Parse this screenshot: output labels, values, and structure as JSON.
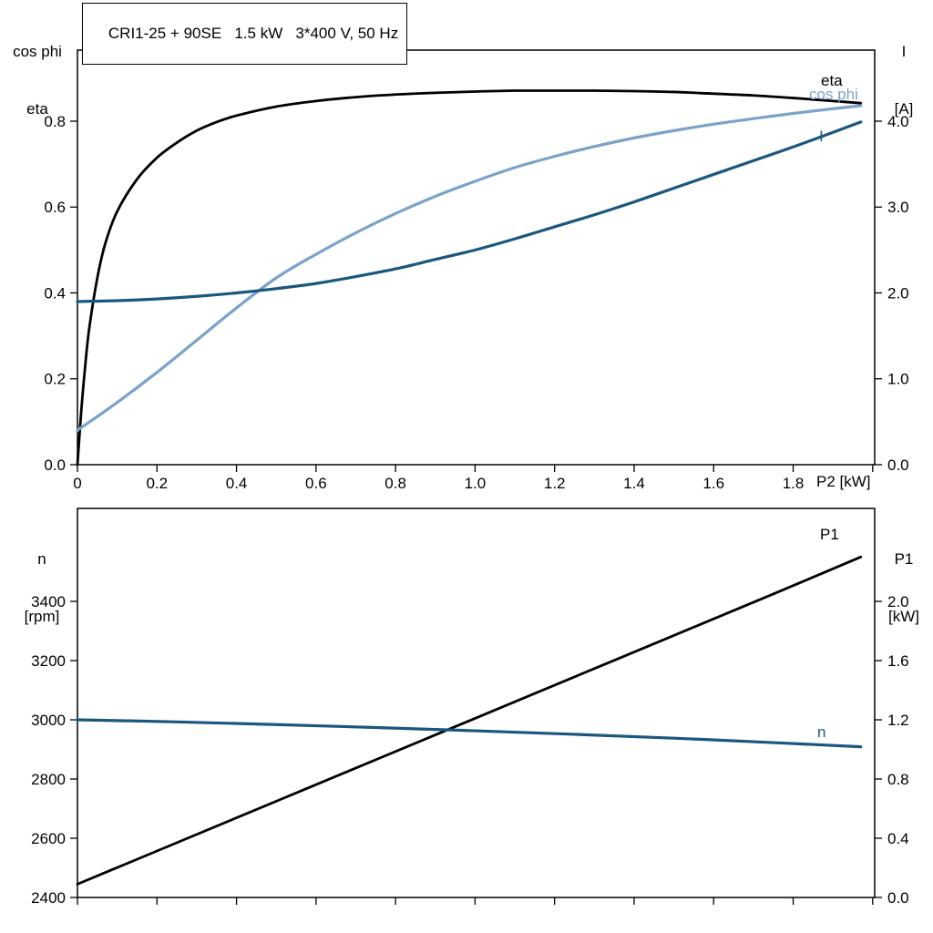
{
  "colors": {
    "black": "#000000",
    "dark_blue": "#1a577f",
    "light_blue": "#7ba3c9",
    "axis": "#000000",
    "background": "#ffffff"
  },
  "chart_data": [
    {
      "type": "line",
      "title": "CRI1-25 + 90SE   1.5 kW   3*400 V, 50 Hz",
      "x_axis": {
        "label": "P2 [kW]",
        "range": [
          0,
          2.005
        ],
        "ticks": [
          0,
          0.2,
          0.4,
          0.6,
          0.8,
          1.0,
          1.2,
          1.4,
          1.6,
          1.8,
          2.0
        ],
        "tick_labels": [
          "0",
          "0.2",
          "0.4",
          "0.6",
          "0.8",
          "1.0",
          "1.2",
          "1.4",
          "1.6",
          "1.8",
          ""
        ]
      },
      "y_left": {
        "label_lines": [
          "cos phi",
          "eta"
        ],
        "range": [
          0,
          0.9655
        ],
        "ticks": [
          0,
          0.2,
          0.4,
          0.6,
          0.8
        ],
        "tick_labels": [
          "0.0",
          "0.2",
          "0.4",
          "0.6",
          "0.8"
        ]
      },
      "y_right": {
        "label_lines": [
          "I",
          "[A]"
        ],
        "range": [
          0,
          4.8275
        ],
        "ticks": [
          0,
          1,
          2,
          3,
          4
        ],
        "tick_labels": [
          "0.0",
          "1.0",
          "2.0",
          "3.0",
          "4.0"
        ]
      },
      "series": [
        {
          "name": "eta",
          "axis": "left",
          "color": "black",
          "x": [
            0,
            0.01,
            0.02,
            0.03,
            0.05,
            0.07,
            0.1,
            0.15,
            0.2,
            0.25,
            0.3,
            0.35,
            0.4,
            0.5,
            0.6,
            0.7,
            0.8,
            0.9,
            1.0,
            1.1,
            1.2,
            1.3,
            1.4,
            1.5,
            1.6,
            1.7,
            1.8,
            1.9,
            1.97
          ],
          "values": [
            0,
            0.13,
            0.235,
            0.32,
            0.435,
            0.515,
            0.59,
            0.665,
            0.715,
            0.75,
            0.778,
            0.798,
            0.813,
            0.834,
            0.847,
            0.856,
            0.862,
            0.866,
            0.869,
            0.871,
            0.871,
            0.871,
            0.87,
            0.868,
            0.864,
            0.86,
            0.854,
            0.847,
            0.842
          ]
        },
        {
          "name": "cos phi",
          "axis": "left",
          "color": "light_blue",
          "x": [
            0,
            0.1,
            0.2,
            0.3,
            0.4,
            0.5,
            0.6,
            0.7,
            0.8,
            0.9,
            1.0,
            1.1,
            1.2,
            1.3,
            1.4,
            1.5,
            1.6,
            1.7,
            1.8,
            1.9,
            1.97
          ],
          "values": [
            0.08,
            0.145,
            0.215,
            0.29,
            0.365,
            0.435,
            0.49,
            0.54,
            0.585,
            0.625,
            0.66,
            0.692,
            0.718,
            0.741,
            0.761,
            0.778,
            0.793,
            0.806,
            0.818,
            0.829,
            0.836
          ]
        },
        {
          "name": "I",
          "axis": "right",
          "color": "dark_blue",
          "x": [
            0,
            0.1,
            0.2,
            0.3,
            0.4,
            0.5,
            0.6,
            0.7,
            0.8,
            0.9,
            1.0,
            1.1,
            1.2,
            1.3,
            1.4,
            1.5,
            1.6,
            1.7,
            1.8,
            1.9,
            1.97
          ],
          "values": [
            1.9,
            1.91,
            1.93,
            1.96,
            2.0,
            2.05,
            2.11,
            2.19,
            2.28,
            2.39,
            2.5,
            2.63,
            2.77,
            2.91,
            3.06,
            3.22,
            3.38,
            3.54,
            3.7,
            3.87,
            3.99
          ]
        }
      ]
    },
    {
      "type": "line",
      "title": "",
      "x_axis": {
        "label": "",
        "range": [
          0,
          2.005
        ],
        "ticks": [
          0,
          0.2,
          0.4,
          0.6,
          0.8,
          1.0,
          1.2,
          1.4,
          1.6,
          1.8,
          2.0
        ],
        "tick_labels": [
          "",
          "",
          "",
          "",
          "",
          "",
          "",
          "",
          "",
          "",
          ""
        ]
      },
      "y_left": {
        "label_lines": [
          "n",
          "[rpm]"
        ],
        "range": [
          2400,
          3714
        ],
        "ticks": [
          2400,
          2600,
          2800,
          3000,
          3200,
          3400
        ],
        "tick_labels": [
          "2400",
          "2600",
          "2800",
          "3000",
          "3200",
          "3400"
        ]
      },
      "y_right": {
        "label_lines": [
          "P1",
          "[kW]"
        ],
        "range": [
          0,
          2.628
        ],
        "ticks": [
          0,
          0.4,
          0.8,
          1.2,
          1.6,
          2.0
        ],
        "tick_labels": [
          "0.0",
          "0.4",
          "0.8",
          "1.2",
          "1.6",
          "2.0"
        ]
      },
      "series": [
        {
          "name": "P1",
          "axis": "right",
          "color": "black",
          "x": [
            0,
            0.25,
            0.5,
            0.75,
            1.0,
            1.25,
            1.5,
            1.75,
            1.97
          ],
          "values": [
            0.09,
            0.37,
            0.65,
            0.93,
            1.21,
            1.49,
            1.77,
            2.05,
            2.3
          ]
        },
        {
          "name": "n",
          "axis": "left",
          "color": "dark_blue",
          "x": [
            0,
            0.25,
            0.5,
            0.75,
            1.0,
            1.25,
            1.5,
            1.75,
            1.97
          ],
          "values": [
            3000,
            2993,
            2984,
            2974,
            2963,
            2951,
            2938,
            2923,
            2909
          ]
        }
      ]
    }
  ]
}
